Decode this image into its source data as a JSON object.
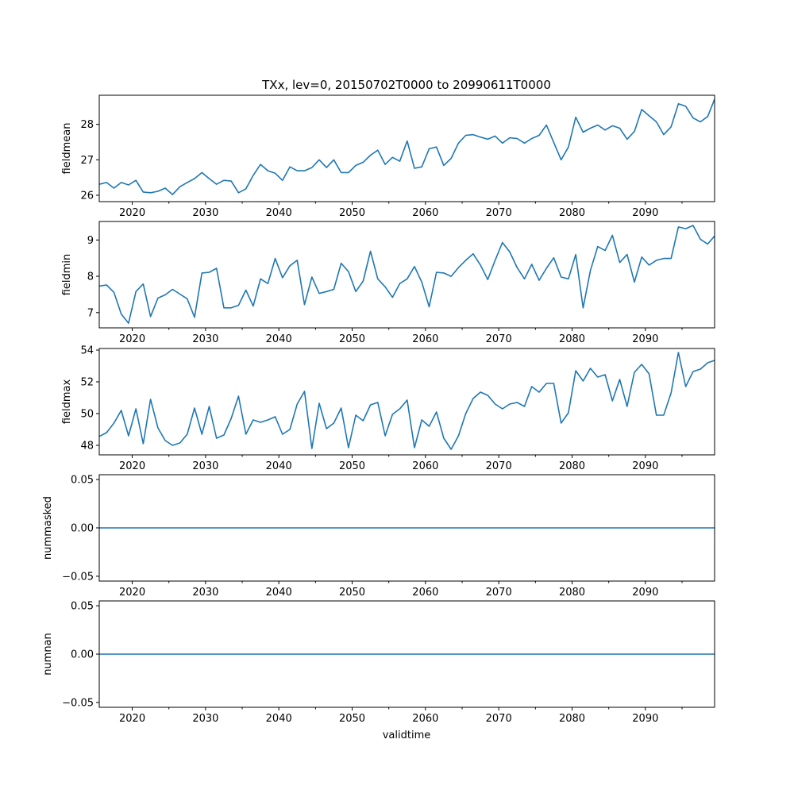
{
  "chart_data": {
    "type": "line",
    "title": "TXx, lev=0, 20150702T0000 to 20990611T0000",
    "xlabel": "validtime",
    "xlim": [
      2015.5,
      2099.44
    ],
    "x_major_ticks": [
      2020,
      2030,
      2040,
      2050,
      2060,
      2070,
      2080,
      2090
    ],
    "x_minor_ticks": [
      2025,
      2035,
      2045,
      2055,
      2065,
      2075,
      2085,
      2095
    ],
    "x_tick_labels": [
      "2020",
      "2030",
      "2040",
      "2050",
      "2060",
      "2070",
      "2080",
      "2090"
    ],
    "line_color": "#1f77b4",
    "years": [
      2015,
      2016,
      2017,
      2018,
      2019,
      2020,
      2021,
      2022,
      2023,
      2024,
      2025,
      2026,
      2027,
      2028,
      2029,
      2030,
      2031,
      2032,
      2033,
      2034,
      2035,
      2036,
      2037,
      2038,
      2039,
      2040,
      2041,
      2042,
      2043,
      2044,
      2045,
      2046,
      2047,
      2048,
      2049,
      2050,
      2051,
      2052,
      2053,
      2054,
      2055,
      2056,
      2057,
      2058,
      2059,
      2060,
      2061,
      2062,
      2063,
      2064,
      2065,
      2066,
      2067,
      2068,
      2069,
      2070,
      2071,
      2072,
      2073,
      2074,
      2075,
      2076,
      2077,
      2078,
      2079,
      2080,
      2081,
      2082,
      2083,
      2084,
      2085,
      2086,
      2087,
      2088,
      2089,
      2090,
      2091,
      2092,
      2093,
      2094,
      2095,
      2096,
      2097,
      2098,
      2099
    ],
    "panels": [
      {
        "ylabel": "fieldmean",
        "ylim": [
          25.82,
          28.82
        ],
        "yticks": [
          26,
          27,
          28
        ],
        "ytick_labels": [
          "26",
          "27",
          "28"
        ],
        "values": [
          26.31,
          26.36,
          26.2,
          26.36,
          26.29,
          26.42,
          26.09,
          26.07,
          26.11,
          26.2,
          26.02,
          26.24,
          26.36,
          26.47,
          26.64,
          26.47,
          26.31,
          26.42,
          26.4,
          26.07,
          26.18,
          26.56,
          26.87,
          26.69,
          26.62,
          26.42,
          26.8,
          26.69,
          26.69,
          26.78,
          27.0,
          26.78,
          27.0,
          26.64,
          26.64,
          26.84,
          26.93,
          27.13,
          27.27,
          26.87,
          27.07,
          26.96,
          27.53,
          26.76,
          26.8,
          27.31,
          27.36,
          26.84,
          27.04,
          27.47,
          27.69,
          27.71,
          27.64,
          27.58,
          27.67,
          27.47,
          27.62,
          27.6,
          27.47,
          27.6,
          27.69,
          27.98,
          27.49,
          27.0,
          27.36,
          28.2,
          27.78,
          27.89,
          27.98,
          27.84,
          27.96,
          27.89,
          27.58,
          27.8,
          28.42,
          28.24,
          28.07,
          27.71,
          27.93,
          28.58,
          28.51,
          28.18,
          28.07,
          28.22,
          28.71
        ]
      },
      {
        "ylabel": "fieldmin",
        "ylim": [
          6.58,
          9.51
        ],
        "yticks": [
          7,
          8,
          9
        ],
        "ytick_labels": [
          "7",
          "8",
          "9"
        ],
        "values": [
          7.73,
          7.76,
          7.56,
          6.96,
          6.71,
          7.58,
          7.79,
          6.89,
          7.4,
          7.49,
          7.64,
          7.51,
          7.38,
          6.87,
          8.09,
          8.11,
          8.22,
          7.13,
          7.13,
          7.2,
          7.62,
          7.18,
          7.93,
          7.8,
          8.49,
          7.96,
          8.29,
          8.44,
          7.22,
          7.98,
          7.53,
          7.58,
          7.64,
          8.36,
          8.13,
          7.58,
          7.87,
          8.69,
          7.93,
          7.71,
          7.42,
          7.8,
          7.93,
          8.27,
          7.84,
          7.16,
          8.11,
          8.09,
          8.0,
          8.24,
          8.44,
          8.62,
          8.31,
          7.91,
          8.44,
          8.93,
          8.67,
          8.24,
          7.93,
          8.33,
          7.89,
          8.22,
          8.51,
          7.98,
          7.93,
          8.6,
          7.13,
          8.16,
          8.82,
          8.71,
          9.13,
          8.38,
          8.6,
          7.84,
          8.53,
          8.31,
          8.44,
          8.49,
          8.49,
          9.36,
          9.31,
          9.4,
          9.02,
          8.89,
          9.11
        ]
      },
      {
        "ylabel": "fieldmax",
        "ylim": [
          47.4,
          54.1
        ],
        "yticks": [
          48,
          50,
          52,
          54
        ],
        "ytick_labels": [
          "48",
          "50",
          "52",
          "54"
        ],
        "values": [
          48.56,
          48.8,
          49.4,
          50.2,
          48.6,
          50.3,
          48.1,
          50.9,
          49.1,
          48.3,
          48.0,
          48.15,
          48.7,
          50.35,
          48.7,
          50.45,
          48.45,
          48.65,
          49.7,
          51.1,
          48.7,
          49.6,
          49.45,
          49.6,
          49.8,
          48.7,
          49.0,
          50.6,
          51.4,
          47.8,
          50.65,
          49.05,
          49.4,
          50.35,
          47.85,
          49.9,
          49.55,
          50.55,
          50.7,
          48.6,
          49.95,
          50.3,
          50.85,
          47.85,
          49.6,
          49.2,
          50.1,
          48.45,
          47.75,
          48.6,
          50.0,
          50.95,
          51.35,
          51.15,
          50.6,
          50.3,
          50.6,
          50.7,
          50.45,
          51.7,
          51.35,
          51.9,
          51.9,
          49.4,
          50.05,
          52.7,
          52.05,
          52.85,
          52.3,
          52.45,
          50.8,
          52.15,
          50.45,
          52.6,
          53.1,
          52.5,
          49.9,
          49.9,
          51.3,
          53.85,
          51.7,
          52.65,
          52.8,
          53.2,
          53.35
        ]
      },
      {
        "ylabel": "nummasked",
        "ylim": [
          -0.055,
          0.055
        ],
        "yticks": [
          -0.05,
          0.0,
          0.05
        ],
        "ytick_labels": [
          "−0.05",
          "0.00",
          "0.05"
        ],
        "values": "zeros"
      },
      {
        "ylabel": "numnan",
        "ylim": [
          -0.055,
          0.055
        ],
        "yticks": [
          -0.05,
          0.0,
          0.05
        ],
        "ytick_labels": [
          "−0.05",
          "0.00",
          "0.05"
        ],
        "values": "zeros"
      }
    ]
  }
}
